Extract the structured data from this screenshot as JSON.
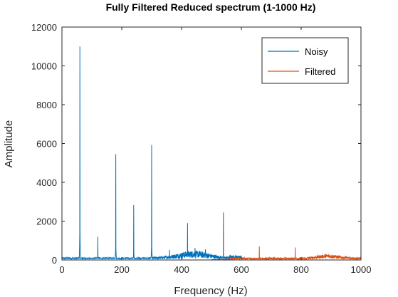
{
  "chart_data": {
    "type": "line",
    "title": "Fully Filtered Reduced spectrum (1-1000 Hz)",
    "xlabel": "Frequency (Hz)",
    "ylabel": "Amplitude",
    "xlim": [
      0,
      1000
    ],
    "ylim": [
      0,
      12000
    ],
    "xticks": [
      0,
      200,
      400,
      600,
      800,
      1000
    ],
    "yticks": [
      0,
      2000,
      4000,
      6000,
      8000,
      10000,
      12000
    ],
    "grid": false,
    "legend": {
      "position": "top-right",
      "entries": [
        "Noisy",
        "Filtered"
      ]
    },
    "series": [
      {
        "name": "Noisy",
        "color": "#0072BD",
        "peaks": [
          [
            60,
            11000
          ],
          [
            120,
            1200
          ],
          [
            180,
            5450
          ],
          [
            240,
            2830
          ],
          [
            300,
            5920
          ],
          [
            360,
            520
          ],
          [
            420,
            1900
          ],
          [
            445,
            620
          ],
          [
            480,
            550
          ],
          [
            540,
            2450
          ],
          [
            660,
            820
          ],
          [
            780,
            650
          ]
        ],
        "range": [
          1,
          600
        ]
      },
      {
        "name": "Filtered",
        "color": "#D95319",
        "peaks": [
          [
            540,
            1200
          ],
          [
            600,
            210
          ],
          [
            660,
            700
          ],
          [
            780,
            640
          ],
          [
            880,
            270
          ],
          [
            950,
            210
          ]
        ],
        "range": [
          500,
          1000
        ]
      }
    ]
  }
}
